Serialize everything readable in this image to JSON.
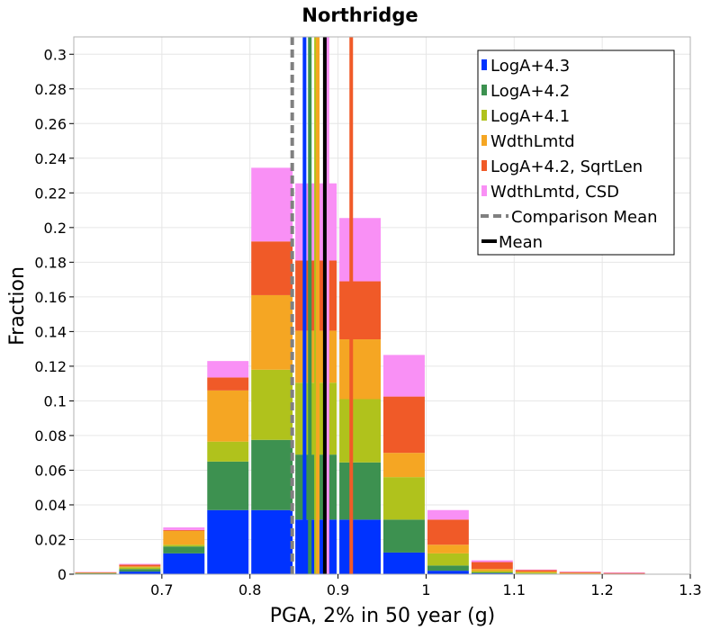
{
  "chart_data": {
    "type": "bar",
    "stacked": true,
    "title": "Northridge",
    "xlabel": "PGA, 2% in 50 year (g)",
    "ylabel": "Fraction",
    "xlim": [
      0.6,
      1.3
    ],
    "ylim": [
      0,
      0.31
    ],
    "grid": true,
    "legend_position": "top-right",
    "x_ticks": [
      "0.7",
      "0.8",
      "0.9",
      "1",
      "1.1",
      "1.2",
      "1.3"
    ],
    "x_tick_values": [
      0.7,
      0.8,
      0.9,
      1.0,
      1.1,
      1.2,
      1.3
    ],
    "y_ticks": [
      "0",
      "0.02",
      "0.04",
      "0.06",
      "0.08",
      "0.1",
      "0.12",
      "0.14",
      "0.16",
      "0.18",
      "0.2",
      "0.22",
      "0.24",
      "0.26",
      "0.28",
      "0.3"
    ],
    "y_tick_values": [
      0,
      0.02,
      0.04,
      0.06,
      0.08,
      0.1,
      0.12,
      0.14,
      0.16,
      0.18,
      0.2,
      0.22,
      0.24,
      0.26,
      0.28,
      0.3
    ],
    "bin_width": 0.05,
    "bin_centers": [
      0.625,
      0.675,
      0.725,
      0.775,
      0.825,
      0.875,
      0.925,
      0.975,
      1.025,
      1.075,
      1.125,
      1.175,
      1.225
    ],
    "series": [
      {
        "name": "LogA+4.3",
        "color": "#0033ff",
        "mean": 0.862,
        "values": [
          0.0003,
          0.0015,
          0.012,
          0.037,
          0.037,
          0.0315,
          0.0315,
          0.0125,
          0.002,
          0.0005,
          0.0002,
          0.0,
          0.0
        ]
      },
      {
        "name": "LogA+4.2",
        "color": "#3d9150",
        "mean": 0.868,
        "values": [
          0.0003,
          0.0015,
          0.004,
          0.028,
          0.0405,
          0.0375,
          0.033,
          0.019,
          0.003,
          0.0005,
          0.0002,
          0.0001,
          0.0
        ]
      },
      {
        "name": "LogA+4.1",
        "color": "#b0c21c",
        "mean": 0.875,
        "values": [
          0.0002,
          0.001,
          0.001,
          0.0115,
          0.0405,
          0.0415,
          0.0365,
          0.0245,
          0.007,
          0.0008,
          0.0006,
          0.0002,
          0.0
        ]
      },
      {
        "name": "WdthLmtd",
        "color": "#f5a623",
        "mean": 0.877,
        "values": [
          0.0002,
          0.0005,
          0.008,
          0.0295,
          0.043,
          0.03,
          0.0345,
          0.014,
          0.005,
          0.0012,
          0.0005,
          0.0004,
          0.0003
        ]
      },
      {
        "name": "LogA+4.2, SqrtLen",
        "color": "#f05a28",
        "mean": 0.915,
        "values": [
          0.0001,
          0.001,
          0.0005,
          0.0075,
          0.031,
          0.0405,
          0.0335,
          0.0325,
          0.0145,
          0.004,
          0.0009,
          0.0006,
          0.0005
        ]
      },
      {
        "name": "WdthLmtd, CSD",
        "color": "#f990f5",
        "mean": 0.888,
        "values": [
          0.0002,
          0.0005,
          0.0015,
          0.0095,
          0.0425,
          0.0445,
          0.0365,
          0.024,
          0.0055,
          0.001,
          0.0003,
          0.0002,
          0.0002
        ]
      }
    ],
    "reference_lines": [
      {
        "name": "Comparison Mean",
        "style": "dashed",
        "color": "#808080",
        "x": 0.848
      },
      {
        "name": "Mean",
        "style": "solid",
        "color": "#000000",
        "x": 0.885
      }
    ],
    "legend": [
      "LogA+4.3",
      "LogA+4.2",
      "LogA+4.1",
      "WdthLmtd",
      "LogA+4.2, SqrtLen",
      "WdthLmtd, CSD",
      "Comparison Mean",
      "Mean"
    ]
  }
}
